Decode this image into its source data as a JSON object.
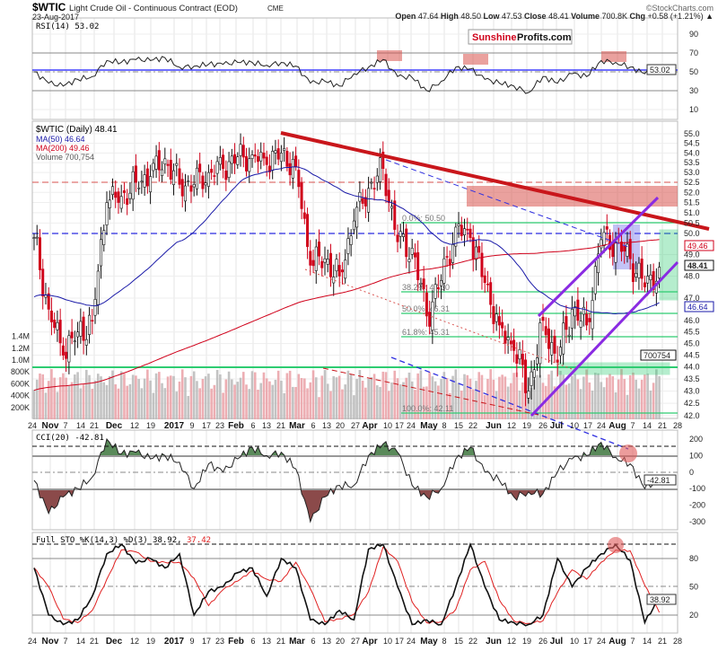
{
  "header": {
    "symbol": "$WTIC",
    "name": "Light Crude Oil - Continuous Contract (EOD)",
    "exchange": "CME",
    "date": "23-Aug-2017",
    "watermark": "©StockCharts.com",
    "open_label": "Open",
    "open": "47.64",
    "high_label": "High",
    "high": "48.50",
    "low_label": "Low",
    "low": "47.53",
    "close_label": "Close",
    "close": "48.41",
    "volume_label": "Volume",
    "volume": "700.8K",
    "chg_label": "Chg",
    "chg": "+0.58 (+1.21%)"
  },
  "logo": {
    "part1": "Sunshine",
    "part2": "Profits.com"
  },
  "colors": {
    "up": "#ffffff",
    "down": "#d0021b",
    "ma50": "#1a1aa8",
    "ma200": "#d0021b",
    "grid": "#e4e4e4",
    "fib": "#2ecc71",
    "channel": "#8a2be2"
  },
  "chart_data": [
    {
      "type": "line",
      "panel": "rsi",
      "title": "RSI(14) 53.02",
      "last": "53.02",
      "yticks": [
        "90",
        "70",
        "50",
        "30",
        "10"
      ],
      "values": [
        50,
        38,
        35,
        42,
        45,
        62,
        60,
        63,
        62,
        65,
        55,
        56,
        58,
        58,
        60,
        60,
        57,
        60,
        56,
        38,
        40,
        35,
        48,
        55,
        63,
        45,
        44,
        30,
        40,
        55,
        53,
        42,
        38,
        35,
        28,
        45,
        38,
        48,
        45,
        62,
        60,
        55,
        48,
        53.02
      ]
    },
    {
      "type": "candlestick",
      "panel": "price",
      "title": "$WTIC (Daily) 48.41",
      "ma50_label": "MA(50) 46.64",
      "ma200_label": "MA(200) 49.46",
      "volume_label": "Volume 700,754",
      "x_unit": "weekly close",
      "scale": "log",
      "ylim": [
        42,
        55
      ],
      "weekly_close": [
        49.8,
        46.5,
        44.5,
        45.5,
        46.0,
        51.5,
        51.8,
        52.5,
        52.8,
        53.7,
        52.4,
        52.4,
        53.0,
        53.2,
        53.8,
        53.9,
        53.4,
        54.0,
        53.3,
        48.5,
        48.8,
        48.0,
        50.6,
        52.2,
        53.2,
        49.6,
        49.3,
        46.2,
        47.8,
        50.3,
        49.8,
        47.7,
        45.8,
        44.7,
        43.0,
        46.0,
        44.2,
        46.5,
        45.8,
        49.7,
        49.6,
        48.8,
        47.5,
        48.41
      ],
      "yticks": [
        "55.0",
        "54.5",
        "54.0",
        "53.5",
        "53.0",
        "52.5",
        "52.0",
        "51.5",
        "51.0",
        "50.5",
        "50.0",
        "49.0",
        "48.0",
        "47.0",
        "46.0",
        "45.5",
        "45.0",
        "44.5",
        "44.0",
        "43.5",
        "43.0",
        "42.5",
        "42.0"
      ],
      "vol_ticks": [
        "1.4M",
        "1.2M",
        "1.0M",
        "800K",
        "600K",
        "400K",
        "200K"
      ],
      "last_close": "48.41",
      "last_ma200": "49.46",
      "last_ma50": "46.64",
      "last_vol": "700754",
      "fib": [
        "0.0%: 50.50",
        "38.2%: 47.30",
        "50.0%: 46.31",
        "61.8%: 45.31",
        "100.0%: 42.11"
      ]
    },
    {
      "type": "line",
      "panel": "cci",
      "title": "CCI(20) -42.81",
      "last": "-42.81",
      "yticks": [
        "200",
        "100",
        "0",
        "-100",
        "-200",
        "-300"
      ],
      "values": [
        -50,
        -250,
        -150,
        -100,
        -30,
        200,
        110,
        120,
        80,
        100,
        60,
        -100,
        50,
        0,
        80,
        150,
        100,
        120,
        20,
        -300,
        -150,
        -80,
        -80,
        100,
        170,
        120,
        -80,
        -150,
        -100,
        80,
        150,
        0,
        -50,
        -150,
        -120,
        -130,
        0,
        80,
        100,
        180,
        90,
        50,
        -100,
        -42.81
      ]
    },
    {
      "type": "line",
      "panel": "sto",
      "title": "Full STO %K(14,3) %D(3) 38.92,",
      "d_value": "37.42",
      "last": "38.92",
      "yticks": [
        "80",
        "50",
        "20"
      ],
      "k": [
        70,
        20,
        10,
        15,
        40,
        85,
        95,
        75,
        80,
        70,
        85,
        20,
        45,
        50,
        65,
        70,
        40,
        80,
        70,
        15,
        10,
        25,
        15,
        90,
        95,
        50,
        10,
        15,
        10,
        50,
        95,
        50,
        15,
        12,
        10,
        20,
        80,
        50,
        70,
        85,
        95,
        78,
        12,
        38.92
      ]
    }
  ],
  "x_ticks": [
    "24",
    "Nov",
    "7",
    "14",
    "21",
    "Dec",
    "12",
    "19",
    "2017",
    "9",
    "17",
    "23",
    "Feb",
    "6",
    "13",
    "21",
    "Mar",
    "6",
    "13",
    "20",
    "27",
    "Apr",
    "10",
    "17",
    "24",
    "May",
    "8",
    "15",
    "22",
    "Jun",
    "12",
    "19",
    "26",
    "Jul",
    "10",
    "17",
    "24",
    "Aug",
    "7",
    "14",
    "21",
    "28"
  ]
}
